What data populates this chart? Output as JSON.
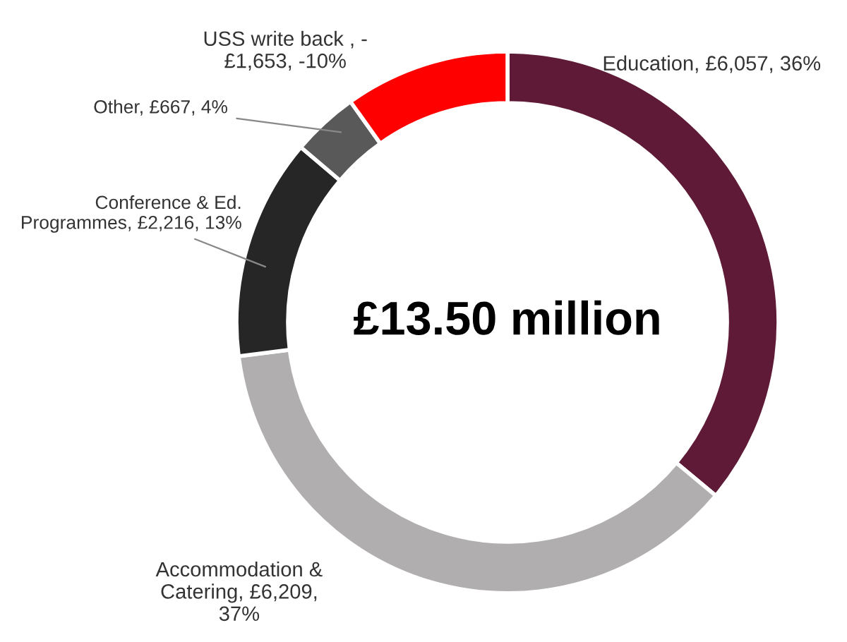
{
  "chart_data": {
    "type": "donut",
    "categories": [
      "Education",
      "Accommodation &\nCatering",
      "Conference & Ed.\nProgrammes",
      "Other",
      "USS write back "
    ],
    "values": [
      6057,
      6209,
      2216,
      667,
      1653
    ],
    "value_labels": [
      "£6,057, 36%",
      "£6,209,\n37%",
      "£2,216, 13%",
      "£667, 4%",
      "-\n£1,653, -10%"
    ],
    "colors": [
      "#5e1a36",
      "#b0aeae",
      "#262626",
      "#595959",
      "#ff0000"
    ],
    "annotations": [
      "£13.50 million"
    ]
  }
}
